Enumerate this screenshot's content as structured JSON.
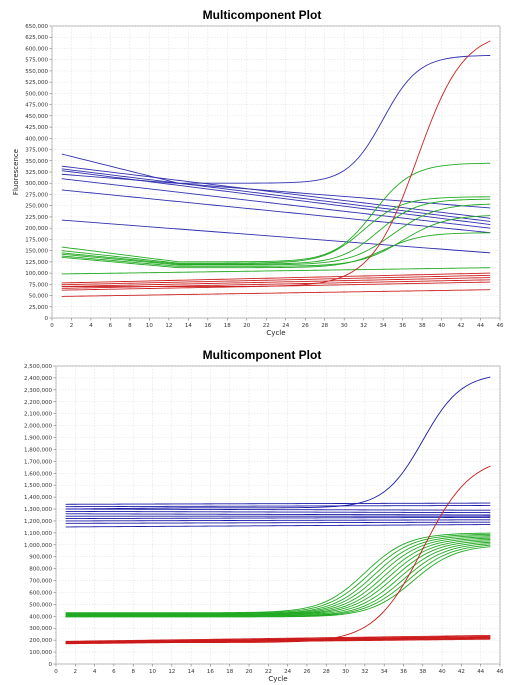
{
  "chart_data": [
    {
      "type": "line",
      "title": "Multicomponent Plot",
      "xlabel": "Cycle",
      "ylabel": "Fluorescence",
      "xlim": [
        0,
        46
      ],
      "ylim": [
        0,
        650000
      ],
      "xticks": [
        0,
        2,
        4,
        6,
        8,
        10,
        12,
        14,
        16,
        18,
        20,
        22,
        24,
        26,
        28,
        30,
        32,
        34,
        36,
        38,
        40,
        42,
        44,
        46
      ],
      "yticks": [
        0,
        25000,
        50000,
        75000,
        100000,
        125000,
        150000,
        175000,
        200000,
        225000,
        250000,
        275000,
        300000,
        325000,
        350000,
        375000,
        400000,
        425000,
        450000,
        475000,
        500000,
        525000,
        550000,
        575000,
        600000,
        625000,
        650000
      ],
      "ytick_labels": [
        "0",
        "25,000",
        "50,000",
        "75,000",
        "100,000",
        "125,000",
        "150,000",
        "175,000",
        "200,000",
        "225,000",
        "250,000",
        "275,000",
        "300,000",
        "325,000",
        "350,000",
        "375,000",
        "400,000",
        "425,000",
        "450,000",
        "475,000",
        "500,000",
        "525,000",
        "550,000",
        "575,000",
        "600,000",
        "625,000",
        "650,000"
      ],
      "grid": true,
      "series_colors": {
        "blue": "#3030b0",
        "green": "#22aa22",
        "red": "#cc2020"
      },
      "x": [
        1,
        45
      ],
      "series": [
        {
          "color": "blue",
          "kind": "sigmoid",
          "start": 365000,
          "base": 300000,
          "slope": -3000,
          "top": 585000,
          "mid": 34,
          "k": 0.55
        },
        {
          "color": "blue",
          "kind": "linear",
          "start": 338000,
          "end": 222000
        },
        {
          "color": "blue",
          "kind": "linear",
          "start": 332000,
          "end": 215000
        },
        {
          "color": "blue",
          "kind": "linear",
          "start": 328000,
          "end": 208000
        },
        {
          "color": "blue",
          "kind": "linear",
          "start": 320000,
          "end": 245000
        },
        {
          "color": "blue",
          "kind": "linear",
          "start": 310000,
          "end": 200000
        },
        {
          "color": "blue",
          "kind": "linear",
          "start": 285000,
          "end": 190000
        },
        {
          "color": "blue",
          "kind": "linear",
          "start": 218000,
          "end": 145000
        },
        {
          "color": "green",
          "kind": "sigmoid",
          "start": 158000,
          "base": 125000,
          "slope": -500,
          "top": 345000,
          "mid": 33,
          "k": 0.5
        },
        {
          "color": "green",
          "kind": "sigmoid",
          "start": 150000,
          "base": 122000,
          "slope": -400,
          "top": 270000,
          "mid": 32,
          "k": 0.5
        },
        {
          "color": "green",
          "kind": "sigmoid",
          "start": 145000,
          "base": 120000,
          "slope": -300,
          "top": 265000,
          "mid": 33.5,
          "k": 0.5
        },
        {
          "color": "green",
          "kind": "sigmoid",
          "start": 142000,
          "base": 118000,
          "slope": -300,
          "top": 255000,
          "mid": 35,
          "k": 0.45
        },
        {
          "color": "green",
          "kind": "sigmoid",
          "start": 138000,
          "base": 115000,
          "slope": -200,
          "top": 230000,
          "mid": 36,
          "k": 0.45
        },
        {
          "color": "green",
          "kind": "sigmoid",
          "start": 135000,
          "base": 112000,
          "slope": -200,
          "top": 190000,
          "mid": 34,
          "k": 0.5
        },
        {
          "color": "green",
          "kind": "linear",
          "start": 98000,
          "end": 112000
        },
        {
          "color": "red",
          "kind": "sigmoid",
          "start": 70000,
          "base": 70000,
          "slope": 200,
          "top": 640000,
          "mid": 37.5,
          "k": 0.42
        },
        {
          "color": "red",
          "kind": "linear",
          "start": 78000,
          "end": 100000
        },
        {
          "color": "red",
          "kind": "linear",
          "start": 74000,
          "end": 95000
        },
        {
          "color": "red",
          "kind": "linear",
          "start": 70000,
          "end": 90000
        },
        {
          "color": "red",
          "kind": "linear",
          "start": 66000,
          "end": 85000
        },
        {
          "color": "red",
          "kind": "linear",
          "start": 62000,
          "end": 80000
        },
        {
          "color": "red",
          "kind": "linear",
          "start": 48000,
          "end": 63000
        }
      ]
    },
    {
      "type": "line",
      "title": "Multicomponent Plot",
      "xlabel": "Cycle",
      "ylabel": "",
      "xlim": [
        0,
        46
      ],
      "ylim": [
        0,
        2500000
      ],
      "xticks": [
        0,
        2,
        4,
        6,
        8,
        10,
        12,
        14,
        16,
        18,
        20,
        22,
        24,
        26,
        28,
        30,
        32,
        34,
        36,
        38,
        40,
        42,
        44,
        46
      ],
      "yticks": [
        0,
        100000,
        200000,
        300000,
        400000,
        500000,
        600000,
        700000,
        800000,
        900000,
        1000000,
        1100000,
        1200000,
        1300000,
        1400000,
        1500000,
        1600000,
        1700000,
        1800000,
        1900000,
        2000000,
        2100000,
        2200000,
        2300000,
        2400000,
        2500000
      ],
      "ytick_labels": [
        "0",
        "100,000",
        "200,000",
        "300,000",
        "400,000",
        "500,000",
        "600,000",
        "700,000",
        "800,000",
        "900,000",
        "1,000,000",
        "1,100,000",
        "1,200,000",
        "1,300,000",
        "1,400,000",
        "1,500,000",
        "1,600,000",
        "1,700,000",
        "1,800,000",
        "1,900,000",
        "2,000,000",
        "2,100,000",
        "2,200,000",
        "2,300,000",
        "2,400,000",
        "2,500,000"
      ],
      "grid": true,
      "series_colors": {
        "blue": "#1a1aa8",
        "green": "#22aa22",
        "red": "#cc1a1a"
      },
      "x": [
        1,
        45
      ],
      "series": [
        {
          "color": "blue",
          "kind": "sigmoid",
          "start": 1300000,
          "base": 1310000,
          "slope": 2000,
          "top": 2440000,
          "mid": 38,
          "k": 0.5
        },
        {
          "color": "blue",
          "kind": "linear",
          "start": 1340000,
          "end": 1350000
        },
        {
          "color": "blue",
          "kind": "linear",
          "start": 1320000,
          "end": 1330000
        },
        {
          "color": "blue",
          "kind": "linear",
          "start": 1300000,
          "end": 1290000
        },
        {
          "color": "blue",
          "kind": "linear",
          "start": 1280000,
          "end": 1270000
        },
        {
          "color": "blue",
          "kind": "linear",
          "start": 1260000,
          "end": 1250000
        },
        {
          "color": "blue",
          "kind": "linear",
          "start": 1240000,
          "end": 1240000
        },
        {
          "color": "blue",
          "kind": "linear",
          "start": 1220000,
          "end": 1230000
        },
        {
          "color": "blue",
          "kind": "linear",
          "start": 1200000,
          "end": 1210000
        },
        {
          "color": "blue",
          "kind": "linear",
          "start": 1180000,
          "end": 1190000
        },
        {
          "color": "blue",
          "kind": "linear",
          "start": 1150000,
          "end": 1170000
        },
        {
          "color": "green",
          "kind": "sigmoid",
          "start": 430000,
          "base": 430000,
          "slope": 1500,
          "top": 1100000,
          "mid": 32,
          "k": 0.45
        },
        {
          "color": "green",
          "kind": "sigmoid",
          "start": 425000,
          "base": 425000,
          "slope": 1500,
          "top": 1090000,
          "mid": 32.5,
          "k": 0.45
        },
        {
          "color": "green",
          "kind": "sigmoid",
          "start": 420000,
          "base": 420000,
          "slope": 1500,
          "top": 1080000,
          "mid": 33,
          "k": 0.45
        },
        {
          "color": "green",
          "kind": "sigmoid",
          "start": 418000,
          "base": 418000,
          "slope": 1500,
          "top": 1070000,
          "mid": 33.5,
          "k": 0.45
        },
        {
          "color": "green",
          "kind": "sigmoid",
          "start": 415000,
          "base": 415000,
          "slope": 1500,
          "top": 1060000,
          "mid": 34,
          "k": 0.45
        },
        {
          "color": "green",
          "kind": "sigmoid",
          "start": 412000,
          "base": 412000,
          "slope": 1500,
          "top": 1050000,
          "mid": 34.5,
          "k": 0.45
        },
        {
          "color": "green",
          "kind": "sigmoid",
          "start": 410000,
          "base": 410000,
          "slope": 1500,
          "top": 1040000,
          "mid": 35,
          "k": 0.45
        },
        {
          "color": "green",
          "kind": "sigmoid",
          "start": 405000,
          "base": 405000,
          "slope": 1500,
          "top": 1030000,
          "mid": 35.5,
          "k": 0.45
        },
        {
          "color": "green",
          "kind": "sigmoid",
          "start": 400000,
          "base": 400000,
          "slope": 1500,
          "top": 1020000,
          "mid": 36,
          "k": 0.45
        },
        {
          "color": "green",
          "kind": "sigmoid",
          "start": 398000,
          "base": 398000,
          "slope": 1500,
          "top": 1010000,
          "mid": 36.5,
          "k": 0.45
        },
        {
          "color": "green",
          "kind": "sigmoid",
          "start": 395000,
          "base": 395000,
          "slope": 1500,
          "top": 1000000,
          "mid": 37,
          "k": 0.45
        },
        {
          "color": "red",
          "kind": "sigmoid",
          "start": 180000,
          "base": 180000,
          "slope": 800,
          "top": 1750000,
          "mid": 38,
          "k": 0.4
        },
        {
          "color": "red",
          "kind": "linear",
          "start": 190000,
          "end": 240000
        },
        {
          "color": "red",
          "kind": "linear",
          "start": 185000,
          "end": 232000
        },
        {
          "color": "red",
          "kind": "linear",
          "start": 182000,
          "end": 226000
        },
        {
          "color": "red",
          "kind": "linear",
          "start": 178000,
          "end": 220000
        },
        {
          "color": "red",
          "kind": "linear",
          "start": 175000,
          "end": 214000
        },
        {
          "color": "red",
          "kind": "linear",
          "start": 170000,
          "end": 208000
        }
      ]
    }
  ]
}
